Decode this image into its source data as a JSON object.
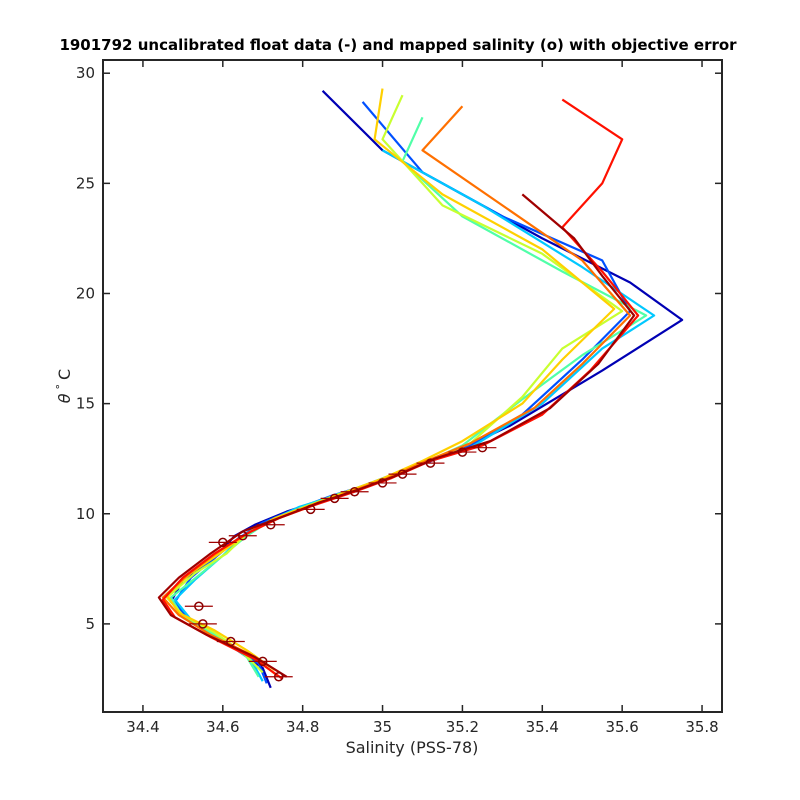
{
  "chart_data": {
    "type": "line",
    "title": "1901792 uncalibrated float data (-) and mapped salinity (o) with objective error",
    "xlabel": "Salinity (PSS-78)",
    "ylabel_symbol": "θ",
    "ylabel_unit": "C",
    "xlim": [
      34.3,
      35.85
    ],
    "ylim": [
      1.0,
      30.6
    ],
    "xticks": [
      34.4,
      34.6,
      34.8,
      35.0,
      35.2,
      35.4,
      35.6,
      35.8
    ],
    "xtick_labels": [
      "34.4",
      "34.6",
      "34.8",
      "35",
      "35.2",
      "35.4",
      "35.6",
      "35.8"
    ],
    "yticks": [
      5,
      10,
      15,
      20,
      25,
      30
    ],
    "ytick_labels": [
      "5",
      "10",
      "15",
      "20",
      "25",
      "30"
    ],
    "grid": false,
    "colormap": "jet",
    "colors": [
      "#0000b4",
      "#0050ff",
      "#00c8ff",
      "#50ffa8",
      "#c8ff30",
      "#ffd000",
      "#ff7000",
      "#ff1000",
      "#a00000"
    ],
    "series": [
      {
        "color_index": 0.0,
        "s": [
          34.72,
          34.7,
          34.62,
          34.53,
          34.47,
          34.5,
          34.58,
          34.63,
          34.68,
          34.76,
          34.86,
          34.95,
          35.05,
          35.18,
          35.32,
          35.55,
          35.75,
          35.62,
          35.4,
          35.2,
          35.0,
          34.85
        ],
        "t": [
          2.1,
          3.0,
          4.0,
          5.0,
          6.0,
          7.0,
          8.0,
          9.0,
          9.5,
          10.1,
          10.7,
          11.2,
          11.9,
          12.8,
          14.0,
          16.5,
          18.8,
          20.5,
          22.5,
          24.5,
          26.5,
          29.2
        ]
      },
      {
        "color_index": 0.12,
        "s": [
          34.71,
          34.69,
          34.61,
          34.52,
          34.48,
          34.52,
          34.58,
          34.64,
          34.7,
          34.78,
          34.87,
          34.96,
          35.06,
          35.2,
          35.35,
          35.5,
          35.62,
          35.55,
          35.3,
          35.1,
          34.95
        ],
        "t": [
          2.3,
          3.2,
          4.1,
          5.1,
          6.0,
          7.1,
          8.0,
          8.9,
          9.6,
          10.2,
          10.8,
          11.3,
          12.0,
          12.9,
          14.5,
          17.0,
          19.2,
          21.5,
          23.5,
          25.5,
          28.7
        ]
      },
      {
        "color_index": 0.25,
        "s": [
          34.7,
          34.67,
          34.6,
          34.52,
          34.48,
          34.53,
          34.6,
          34.65,
          34.71,
          34.79,
          34.88,
          34.97,
          35.07,
          35.22,
          35.4,
          35.55,
          35.68,
          35.5,
          35.25,
          35.0
        ],
        "t": [
          2.4,
          3.4,
          4.3,
          5.2,
          6.1,
          7.0,
          8.1,
          9.0,
          9.6,
          10.3,
          10.8,
          11.4,
          12.1,
          13.0,
          15.0,
          17.5,
          19.0,
          21.2,
          24.0,
          26.5
        ]
      },
      {
        "color_index": 0.38,
        "s": [
          34.69,
          34.66,
          34.59,
          34.5,
          34.47,
          34.54,
          34.6,
          34.66,
          34.72,
          34.8,
          34.89,
          34.98,
          35.08,
          35.2,
          35.35,
          35.5,
          35.66,
          35.45,
          35.2,
          35.05,
          35.1
        ],
        "t": [
          2.6,
          3.5,
          4.4,
          5.3,
          6.2,
          7.2,
          8.1,
          9.0,
          9.7,
          10.3,
          10.9,
          11.4,
          12.1,
          13.1,
          15.2,
          17.2,
          19.0,
          21.0,
          23.5,
          26.0,
          28.0
        ]
      },
      {
        "color_index": 0.5,
        "s": [
          34.7,
          34.65,
          34.58,
          34.5,
          34.46,
          34.53,
          34.61,
          34.66,
          34.72,
          34.81,
          34.9,
          34.99,
          35.09,
          35.22,
          35.35,
          35.45,
          35.6,
          35.4,
          35.15,
          35.0,
          35.05
        ],
        "t": [
          2.8,
          3.7,
          4.6,
          5.4,
          6.2,
          7.3,
          8.2,
          9.1,
          9.7,
          10.3,
          10.9,
          11.5,
          12.2,
          13.2,
          15.3,
          17.5,
          19.2,
          21.8,
          24.0,
          27.0,
          29.0
        ]
      },
      {
        "color_index": 0.62,
        "s": [
          34.73,
          34.66,
          34.58,
          34.49,
          34.46,
          34.52,
          34.6,
          34.67,
          34.73,
          34.82,
          34.91,
          35.0,
          35.1,
          35.2,
          35.35,
          35.45,
          35.58,
          35.4,
          35.15,
          34.98,
          35.0
        ],
        "t": [
          2.9,
          3.8,
          4.7,
          5.5,
          6.3,
          7.3,
          8.3,
          9.2,
          9.8,
          10.4,
          11.0,
          11.6,
          12.4,
          13.3,
          15.0,
          17.0,
          19.3,
          22.0,
          24.5,
          27.0,
          29.3
        ]
      },
      {
        "color_index": 0.75,
        "s": [
          34.74,
          34.67,
          34.57,
          34.49,
          34.45,
          34.51,
          34.59,
          34.67,
          34.74,
          34.83,
          34.92,
          35.01,
          35.11,
          35.22,
          35.38,
          35.5,
          35.62,
          35.5,
          35.3,
          35.1,
          35.2
        ],
        "t": [
          2.6,
          3.6,
          4.5,
          5.4,
          6.2,
          7.2,
          8.3,
          9.2,
          9.8,
          10.4,
          11.0,
          11.6,
          12.4,
          13.2,
          14.8,
          16.8,
          19.0,
          21.5,
          24.0,
          26.5,
          28.5
        ]
      },
      {
        "color_index": 0.87,
        "s": [
          34.75,
          34.68,
          34.57,
          34.48,
          34.45,
          34.5,
          34.58,
          34.66,
          34.74,
          34.83,
          34.93,
          35.02,
          35.12,
          35.25,
          35.4,
          35.52,
          35.64,
          35.55,
          35.45,
          35.55,
          35.6,
          35.45
        ],
        "t": [
          2.5,
          3.4,
          4.4,
          5.3,
          6.1,
          7.1,
          8.2,
          9.1,
          9.8,
          10.4,
          11.0,
          11.6,
          12.4,
          13.1,
          14.5,
          16.5,
          19.0,
          21.0,
          23.0,
          25.0,
          27.0,
          28.8
        ]
      },
      {
        "color_index": 1.0,
        "s": [
          34.76,
          34.68,
          34.56,
          34.47,
          34.44,
          34.49,
          34.57,
          34.65,
          34.74,
          34.84,
          34.94,
          35.03,
          35.13,
          35.27,
          35.42,
          35.54,
          35.63,
          35.55,
          35.48,
          35.35
        ],
        "t": [
          2.6,
          3.5,
          4.5,
          5.4,
          6.2,
          7.1,
          8.2,
          9.2,
          9.8,
          10.5,
          11.1,
          11.7,
          12.5,
          13.3,
          14.8,
          16.8,
          19.0,
          20.8,
          22.5,
          24.5
        ]
      }
    ],
    "mapped_points": [
      {
        "s": 34.74,
        "t": 2.6
      },
      {
        "s": 34.7,
        "t": 3.3
      },
      {
        "s": 34.62,
        "t": 4.2
      },
      {
        "s": 34.55,
        "t": 5.0
      },
      {
        "s": 34.54,
        "t": 5.8
      },
      {
        "s": 34.6,
        "t": 8.7
      },
      {
        "s": 34.65,
        "t": 9.0
      },
      {
        "s": 34.72,
        "t": 9.5
      },
      {
        "s": 34.82,
        "t": 10.2
      },
      {
        "s": 34.88,
        "t": 10.7
      },
      {
        "s": 34.93,
        "t": 11.0
      },
      {
        "s": 35.0,
        "t": 11.4
      },
      {
        "s": 35.05,
        "t": 11.8
      },
      {
        "s": 35.12,
        "t": 12.3
      },
      {
        "s": 35.2,
        "t": 12.8
      },
      {
        "s": 35.25,
        "t": 13.0
      }
    ]
  }
}
